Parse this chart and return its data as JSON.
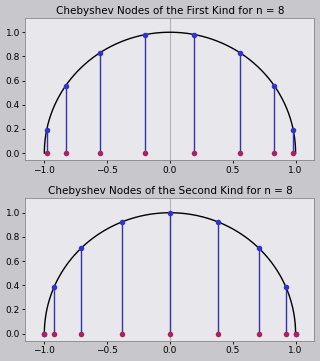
{
  "n": 8,
  "title1": "Chebyshev Nodes of the First Kind for n = 8",
  "title2": "Chebyshev Nodes of the Second Kind for n = 8",
  "xlim": [
    -1.15,
    1.15
  ],
  "ylim": [
    -0.06,
    1.12
  ],
  "xticks": [
    -1.0,
    -0.5,
    0.0,
    0.5,
    1.0
  ],
  "yticks": [
    0.0,
    0.2,
    0.4,
    0.6,
    0.8,
    1.0
  ],
  "bg_color": "#e8e8ec",
  "fig_bg_color": "#c8c8cc",
  "curve_color": "#000000",
  "line_color": "#3333aa",
  "dot_circle_color": "#3333cc",
  "dot_x_color": "#aa2266",
  "vline_color": "#b0b0b8",
  "title_fontsize": 7.5,
  "tick_fontsize": 6.5,
  "figsize": [
    3.2,
    3.61
  ],
  "dpi": 100
}
